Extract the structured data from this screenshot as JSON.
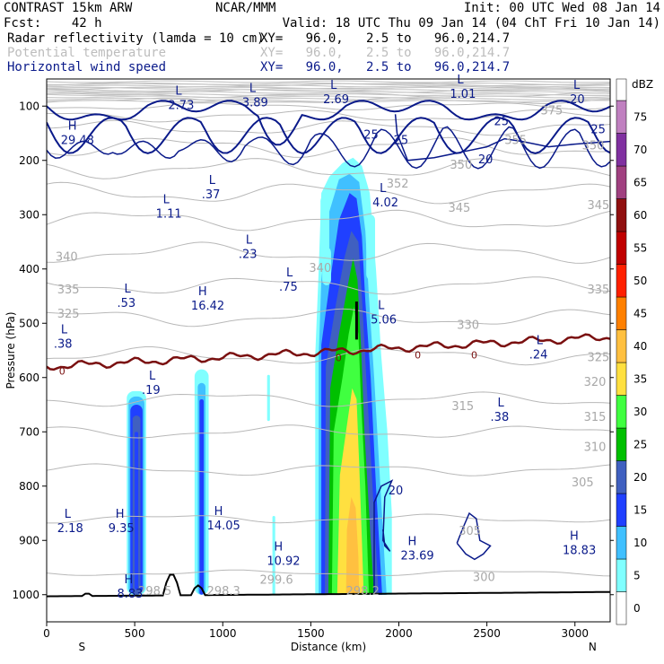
{
  "header": {
    "left1": "CONTRAST 15km ARW",
    "center1": "NCAR/MMM",
    "right1": "Init: 00 UTC Wed 08 Jan 14",
    "left2": "Fcst:    42 h",
    "right2": "Valid: 18 UTC Thu 09 Jan 14 (04 ChT Fri 10 Jan 14)",
    "fields": [
      {
        "name": "Radar reflectivity (lamda = 10 cm)",
        "xy": "XY=   96.0,   2.5 to   96.0,214.7",
        "color": "#000000"
      },
      {
        "name": "Potential temperature",
        "xy": "XY=   96.0,   2.5 to   96.0,214.7",
        "color": "#bdbdbd"
      },
      {
        "name": "Horizontal wind speed",
        "xy": "XY=   96.0,   2.5 to   96.0,214.7",
        "color": "#0a1a8a"
      }
    ]
  },
  "chart_data": {
    "type": "contour cross-section",
    "xlabel": "Distance (km)",
    "ylabel": "Pressure (hPa)",
    "xlim": [
      0,
      3200
    ],
    "ylim": [
      1050,
      50
    ],
    "x_ticks": [
      0,
      500,
      1000,
      1500,
      2000,
      2500,
      3000
    ],
    "y_ticks": [
      100,
      200,
      300,
      400,
      500,
      600,
      700,
      800,
      900,
      1000
    ],
    "x_end_labels": {
      "left": "S",
      "right": "N"
    },
    "colorbar": {
      "unit": "dBZ",
      "levels": [
        0,
        5,
        10,
        15,
        20,
        25,
        30,
        35,
        40,
        45,
        50,
        55,
        60,
        65,
        70,
        75
      ],
      "colors": [
        "#ffffff",
        "#80ffff",
        "#40c0ff",
        "#2040ff",
        "#4060c0",
        "#00c000",
        "#40ff40",
        "#ffe040",
        "#ffc040",
        "#ff8000",
        "#ff2000",
        "#c00000",
        "#901010",
        "#a04080",
        "#8030a0",
        "#c080c0"
      ]
    },
    "reflectivity_cells": [
      {
        "x_center": 510,
        "p_top": 625,
        "p_bottom": 1000,
        "max_dbz": 25
      },
      {
        "x_center": 880,
        "p_top": 585,
        "p_bottom": 1000,
        "max_dbz": 20
      },
      {
        "x_center": 1260,
        "p_top": 595,
        "p_bottom": 680,
        "max_dbz": 5
      },
      {
        "x_center": 1290,
        "p_top": 855,
        "p_bottom": 1000,
        "max_dbz": 5
      },
      {
        "x_center": 1750,
        "p_top": 215,
        "p_bottom": 1000,
        "max_dbz": 40
      }
    ],
    "theta_contour_labels": [
      "375",
      "355",
      "352",
      "350",
      "350",
      "345",
      "345",
      "340",
      "340",
      "335",
      "335",
      "330",
      "325",
      "325",
      "320",
      "315",
      "315",
      "310",
      "305",
      "305",
      "300",
      "299.6",
      "298.3",
      "298.2",
      "298.5"
    ],
    "wind_contour_labels": [
      "25",
      "25",
      "25",
      "25",
      "20",
      "20"
    ],
    "zero_contour_label": "0",
    "extrema": [
      {
        "type": "L",
        "value": "2.73"
      },
      {
        "type": "L",
        "value": "3.89"
      },
      {
        "type": "L",
        "value": "2.69"
      },
      {
        "type": "L",
        "value": "1.01"
      },
      {
        "type": "L",
        "value": ".20"
      },
      {
        "type": "H",
        "value": "29.48"
      },
      {
        "type": "L",
        "value": "1.11"
      },
      {
        "type": "L",
        "value": ".37"
      },
      {
        "type": "L",
        "value": "4.02"
      },
      {
        "type": "L",
        "value": ".23"
      },
      {
        "type": "L",
        "value": ".53"
      },
      {
        "type": "H",
        "value": "16.42"
      },
      {
        "type": "L",
        "value": ".75"
      },
      {
        "type": "L",
        "value": "5.06"
      },
      {
        "type": "L",
        "value": ".38"
      },
      {
        "type": "L",
        "value": ".24"
      },
      {
        "type": "L",
        "value": ".19"
      },
      {
        "type": "L",
        "value": ".38"
      },
      {
        "type": "L",
        "value": "2.18"
      },
      {
        "type": "H",
        "value": "9.35"
      },
      {
        "type": "H",
        "value": "14.05"
      },
      {
        "type": "H",
        "value": "10.92"
      },
      {
        "type": "H",
        "value": "23.69"
      },
      {
        "type": "H",
        "value": "18.83"
      },
      {
        "type": "H",
        "value": "8.83"
      }
    ]
  }
}
